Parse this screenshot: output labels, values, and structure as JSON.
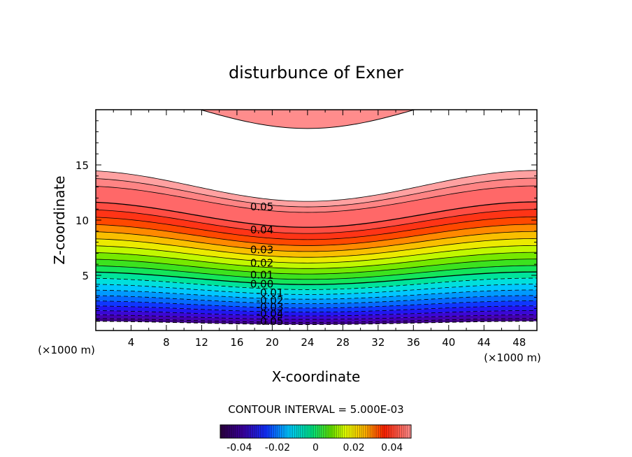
{
  "chart_data": {
    "type": "contour",
    "title": "disturbunce of Exner",
    "xlabel": "X-coordinate",
    "ylabel": "Z-coordinate",
    "x_unit": "(×1000 m)",
    "y_unit": "(×1000 m)",
    "xlim": [
      0,
      50
    ],
    "ylim": [
      0,
      20
    ],
    "x_ticks": [
      4,
      8,
      12,
      16,
      20,
      24,
      28,
      32,
      36,
      40,
      44,
      48
    ],
    "y_ticks": [
      5,
      10,
      15
    ],
    "contour_interval_text": "CONTOUR INTERVAL = 5.000E-03",
    "contour_interval": 0.005,
    "contour_labels": [
      {
        "text": "0.05",
        "x": 17.5,
        "z": 10.9
      },
      {
        "text": "0.04",
        "x": 17.5,
        "z": 8.8
      },
      {
        "text": "0.03",
        "x": 17.5,
        "z": 7.0
      },
      {
        "text": "0.02",
        "x": 17.5,
        "z": 5.8
      },
      {
        "text": "0.01",
        "x": 17.5,
        "z": 4.7
      },
      {
        "text": "0.00",
        "x": 17.5,
        "z": 3.9
      },
      {
        "text": "-0.01",
        "x": 18.2,
        "z": 3.1
      },
      {
        "text": "-0.02",
        "x": 18.2,
        "z": 2.4
      },
      {
        "text": "-0.03",
        "x": 18.2,
        "z": 1.8
      },
      {
        "text": "-0.04",
        "x": 18.2,
        "z": 1.2
      },
      {
        "text": "-0.05",
        "x": 18.2,
        "z": 0.5
      }
    ],
    "colorbar": {
      "range": [
        -0.05,
        0.05
      ],
      "tick_values": [
        -0.04,
        -0.02,
        0,
        0.02,
        0.04
      ],
      "tick_labels": [
        "-0.04",
        "-0.02",
        "0",
        "0.02",
        "0.04"
      ]
    },
    "grid": false
  }
}
